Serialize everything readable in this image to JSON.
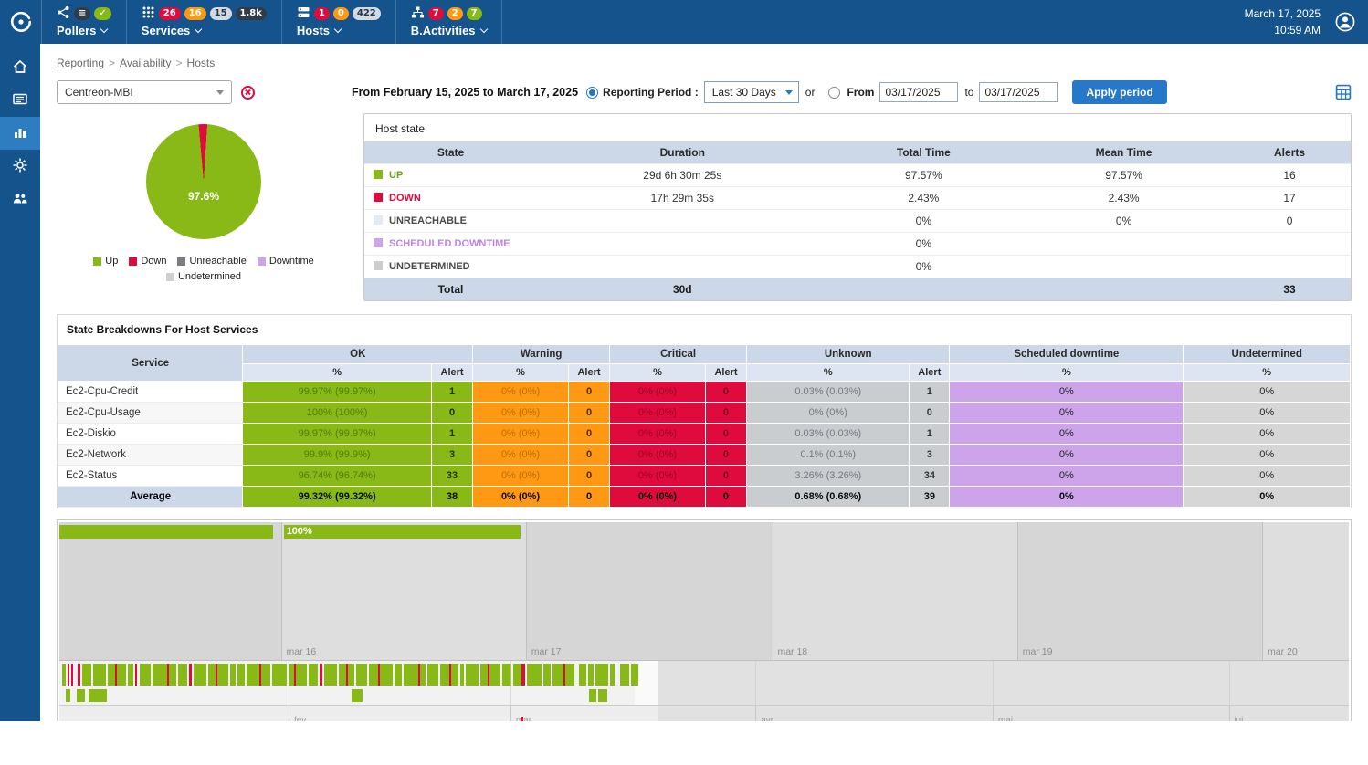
{
  "colors": {
    "topbar": "#15538c",
    "active_item": "#2f7dc1",
    "green": "#88b917",
    "red": "#e00b3d",
    "orange": "#ff9913",
    "purple": "#cda4ea",
    "unknown": "#cacdd0",
    "unreachable": "#e3eaf3",
    "undetermined": "#cdcdcd",
    "header_blue": "#ccd7e8",
    "subheader_blue": "#dde5f2",
    "button_blue": "#2778c9"
  },
  "topbar": {
    "date": "March 17, 2025",
    "time": "10:59 AM",
    "menus": [
      {
        "id": "pollers",
        "label": "Pollers",
        "badges": [
          {
            "text": "≡",
            "color": "slate"
          },
          {
            "text": "✓",
            "color": "green"
          }
        ]
      },
      {
        "id": "services",
        "label": "Services",
        "badges": [
          {
            "text": "26",
            "color": "red"
          },
          {
            "text": "16",
            "color": "orange"
          },
          {
            "text": "15",
            "color": "pale"
          },
          {
            "text": "1.8k",
            "color": "slate"
          }
        ]
      },
      {
        "id": "hosts",
        "label": "Hosts",
        "badges": [
          {
            "text": "1",
            "color": "red"
          },
          {
            "text": "0",
            "color": "orange"
          },
          {
            "text": "422",
            "color": "pale"
          }
        ]
      },
      {
        "id": "ba",
        "label": "B.Activities",
        "badges": [
          {
            "text": "7",
            "color": "red"
          },
          {
            "text": "2",
            "color": "orange"
          },
          {
            "text": "7",
            "color": "green"
          }
        ]
      }
    ]
  },
  "sidebar": {
    "items": [
      {
        "name": "home",
        "icon": "home-icon",
        "active": false
      },
      {
        "name": "monitoring",
        "icon": "monitoring-icon",
        "active": false
      },
      {
        "name": "reporting",
        "icon": "chart-icon",
        "active": true
      },
      {
        "name": "configuration",
        "icon": "gear-icon",
        "active": false
      },
      {
        "name": "administration",
        "icon": "people-icon",
        "active": false
      }
    ]
  },
  "breadcrumb": {
    "items": [
      "Reporting",
      "Availability",
      "Hosts"
    ],
    "separator": ">"
  },
  "filters": {
    "host_select": "Centreon-MBI",
    "range_text": "From February 15, 2025 to March 17, 2025",
    "reporting_period_label": "Reporting Period :",
    "period_select": "Last 30 Days",
    "or_label": "or",
    "from_label": "From",
    "from_value": "03/17/2025",
    "to_label": "to",
    "to_value": "03/17/2025",
    "apply_button": "Apply period"
  },
  "pie": {
    "label": "97.6%",
    "slices": [
      {
        "name": "Up",
        "pct": 97.6
      },
      {
        "name": "Down",
        "pct": 2.4
      }
    ],
    "legend": [
      {
        "label": "Up",
        "color": "#88b917"
      },
      {
        "label": "Down",
        "color": "#e00b3d"
      },
      {
        "label": "Unreachable",
        "color": "#7b7d82"
      },
      {
        "label": "Downtime",
        "color": "#cda4ea"
      },
      {
        "label": "Undetermined",
        "color": "#cfcfcf"
      }
    ]
  },
  "host_state": {
    "title": "Host state",
    "columns": [
      "State",
      "Duration",
      "Total Time",
      "Mean Time",
      "Alerts"
    ],
    "rows": [
      {
        "key": "up",
        "state": "UP",
        "duration": "29d 6h 30m 25s",
        "total": "97.57%",
        "mean": "97.57%",
        "alerts": "16"
      },
      {
        "key": "down",
        "state": "DOWN",
        "duration": "17h 29m 35s",
        "total": "2.43%",
        "mean": "2.43%",
        "alerts": "17"
      },
      {
        "key": "unreachable",
        "state": "UNREACHABLE",
        "duration": "",
        "total": "0%",
        "mean": "0%",
        "alerts": "0"
      },
      {
        "key": "downtime",
        "state": "SCHEDULED DOWNTIME",
        "duration": "",
        "total": "0%",
        "mean": "",
        "alerts": ""
      },
      {
        "key": "undetermined",
        "state": "UNDETERMINED",
        "duration": "",
        "total": "0%",
        "mean": "",
        "alerts": ""
      }
    ],
    "total": {
      "label": "Total",
      "duration": "30d",
      "total": "",
      "mean": "",
      "alerts": "33"
    }
  },
  "breakdown": {
    "title": "State Breakdowns For Host Services",
    "groups": [
      "Service",
      "OK",
      "Warning",
      "Critical",
      "Unknown",
      "Scheduled downtime",
      "Undetermined"
    ],
    "sub": {
      "pct": "%",
      "alert": "Alert"
    },
    "rows": [
      {
        "service": "Ec2-Cpu-Credit",
        "values": [
          "99.97% (99.97%)",
          "1",
          "0% (0%)",
          "0",
          "0% (0%)",
          "0",
          "0.03% (0.03%)",
          "1",
          "0%",
          "0%"
        ]
      },
      {
        "service": "Ec2-Cpu-Usage",
        "values": [
          "100% (100%)",
          "0",
          "0% (0%)",
          "0",
          "0% (0%)",
          "0",
          "0% (0%)",
          "0",
          "0%",
          "0%"
        ]
      },
      {
        "service": "Ec2-Diskio",
        "values": [
          "99.97% (99.97%)",
          "1",
          "0% (0%)",
          "0",
          "0% (0%)",
          "0",
          "0.03% (0.03%)",
          "1",
          "0%",
          "0%"
        ]
      },
      {
        "service": "Ec2-Network",
        "values": [
          "99.9% (99.9%)",
          "3",
          "0% (0%)",
          "0",
          "0% (0%)",
          "0",
          "0.1% (0.1%)",
          "3",
          "0%",
          "0%"
        ]
      },
      {
        "service": "Ec2-Status",
        "values": [
          "96.74% (96.74%)",
          "33",
          "0% (0%)",
          "0",
          "0% (0%)",
          "0",
          "3.26% (3.26%)",
          "34",
          "0%",
          "0%"
        ]
      }
    ],
    "average": {
      "service": "Average",
      "values": [
        "99.32% (99.32%)",
        "38",
        "0% (0%)",
        "0",
        "0% (0%)",
        "0",
        "0.68% (0.68%)",
        "39",
        "0%",
        "0%"
      ]
    }
  },
  "timeline": {
    "day_labels": [
      "mar 16",
      "mar 17",
      "mar 18",
      "mar 19",
      "mar 20"
    ],
    "day_positions": [
      17.2,
      36.2,
      55.3,
      74.3,
      93.3
    ],
    "bars": [
      {
        "left": 0,
        "width": 16.55,
        "label": ""
      },
      {
        "left": 17.4,
        "width": 18.4,
        "label": "100%"
      }
    ],
    "months": [
      "fev",
      "mar",
      "avr",
      "mai",
      "jui"
    ],
    "month_positions": [
      17.8,
      35.0,
      54.0,
      72.4,
      90.7
    ],
    "marker_pos": 35.8,
    "barcode_row1": "4g2w2r2w2r5w3r2w10g2w14g2w8g2r10g2w6g2w2r3w12g2w16g2r8g2w10g2w3r2w14g2w8g2r12g2w6g2w8g2w14g2r10g2w16g2w6g2r12g2w10g2w3r2w14g2w8g2r7g2w12g2w10g2r14g2w8g2w16g2r6g2w12g2w10g2r8g2w4g2w14g2w8g2r12g2w10g2w9g4r2w16g2w8g2w12g2r10g5w8g2w6g2w14g2w5g6w10g2w8g",
    "barcode_row2": "4w5g7w9g4w20g268w12g248w8g2w10g"
  }
}
